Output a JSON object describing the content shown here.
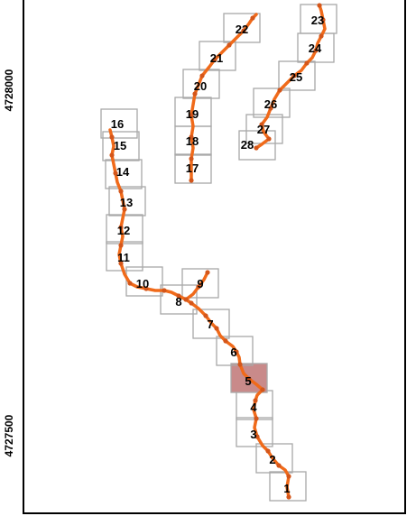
{
  "axis": {
    "y_tick_labels": [
      "4728000",
      "4727500"
    ]
  },
  "colors": {
    "track": "#f06a1a",
    "track_dark": "#d4561a",
    "cell_border": "#a8a8a8",
    "highlight_fill": "#c98a8a",
    "frame": "#000000"
  },
  "highlighted_cell": "5",
  "cells": [
    {
      "label": "1"
    },
    {
      "label": "2"
    },
    {
      "label": "3"
    },
    {
      "label": "4"
    },
    {
      "label": "5"
    },
    {
      "label": "6"
    },
    {
      "label": "7"
    },
    {
      "label": "8"
    },
    {
      "label": "9"
    },
    {
      "label": "10"
    },
    {
      "label": "11"
    },
    {
      "label": "12"
    },
    {
      "label": "13"
    },
    {
      "label": "14"
    },
    {
      "label": "15"
    },
    {
      "label": "16"
    },
    {
      "label": "17"
    },
    {
      "label": "18"
    },
    {
      "label": "19"
    },
    {
      "label": "20"
    },
    {
      "label": "21"
    },
    {
      "label": "22"
    },
    {
      "label": "23"
    },
    {
      "label": "24"
    },
    {
      "label": "25"
    },
    {
      "label": "26"
    },
    {
      "label": "27"
    },
    {
      "label": "28"
    }
  ]
}
